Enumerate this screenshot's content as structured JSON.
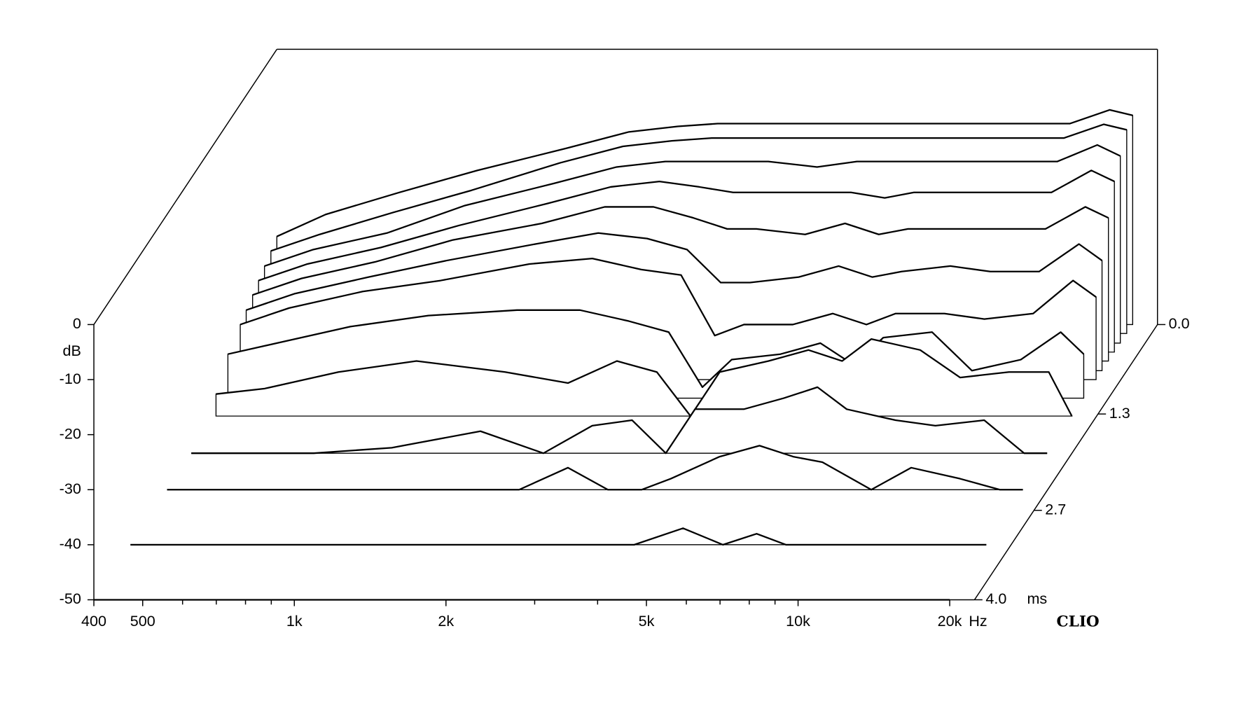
{
  "chart_data": {
    "type": "waterfall",
    "xlabel": "Hz",
    "ylabel": "dB",
    "zlabel": "ms",
    "watermark": "CLIO",
    "x": [
      400,
      500,
      700,
      1000,
      1500,
      2000,
      2500,
      3000,
      3500,
      4000,
      5000,
      6000,
      7000,
      8000,
      10000,
      12000,
      15000,
      18000,
      20000
    ],
    "xlim": [
      400,
      22400
    ],
    "xticks": [
      400,
      500,
      {
        "value": 1000,
        "label": "1k"
      },
      {
        "value": 2000,
        "label": "2k"
      },
      {
        "value": 5000,
        "label": "5k"
      },
      {
        "value": 10000,
        "label": "10k"
      },
      {
        "value": 20000,
        "label": "20k"
      }
    ],
    "xminor_ticks": [
      600,
      700,
      800,
      900,
      3000,
      4000,
      6000,
      7000,
      8000,
      9000
    ],
    "ylim": [
      -50,
      0
    ],
    "yticks": [
      0,
      -10,
      -20,
      -30,
      -40,
      -50
    ],
    "zlim": [
      0,
      4
    ],
    "zticks": [
      {
        "value": 0,
        "label": "0.0"
      },
      1.3,
      2.7,
      {
        "value": 4,
        "label": "4.0"
      }
    ],
    "slices": [
      {
        "time": 0,
        "values": [
          -34,
          -30,
          -26,
          -22,
          -18,
          -15,
          -14,
          -13.5,
          -13.5,
          -13.5,
          -13.5,
          -13.5,
          -13.5,
          -13.5,
          -13.5,
          -13.5,
          -13.5,
          -11,
          -12
        ]
      },
      {
        "time": 0.13,
        "values": [
          -35,
          -32,
          -28,
          -24,
          -19,
          -16,
          -15,
          -14.5,
          -14.5,
          -14.5,
          -14.5,
          -14.5,
          -14.5,
          -14.5,
          -14.5,
          -14.5,
          -14.5,
          -12,
          -13
        ]
      },
      {
        "time": 0.27,
        "values": [
          -36,
          -33,
          -30,
          -25,
          -21,
          -18,
          -17,
          -17,
          -17,
          -17,
          -18,
          -17,
          -17,
          -17,
          -17,
          -17,
          -17,
          -14,
          -16
        ]
      },
      {
        "time": 0.4,
        "values": [
          -37,
          -34,
          -31,
          -27,
          -23,
          -20,
          -19,
          -20,
          -21,
          -21,
          -21,
          -21,
          -22,
          -21,
          -21,
          -21,
          -21,
          -17,
          -19
        ]
      },
      {
        "time": 0.53,
        "values": [
          -38,
          -35,
          -32,
          -28,
          -25,
          -22,
          -22,
          -24,
          -26,
          -26,
          -27,
          -25,
          -27,
          -26,
          -26,
          -26,
          -26,
          -22,
          -24
        ]
      },
      {
        "time": 0.67,
        "values": [
          -39,
          -36,
          -33,
          -30,
          -27,
          -25,
          -26,
          -28,
          -34,
          -34,
          -33,
          -31,
          -33,
          -32,
          -31,
          -32,
          -32,
          -27,
          -30
        ]
      },
      {
        "time": 0.8,
        "values": [
          -40,
          -37,
          -34,
          -32,
          -29,
          -28,
          -30,
          -31,
          -42,
          -40,
          -40,
          -38,
          -40,
          -38,
          -38,
          -39,
          -38,
          -32,
          -35
        ]
      },
      {
        "time": 1.07,
        "values": [
          -42,
          -40,
          -37,
          -35,
          -34,
          -34,
          -36,
          -38,
          -48,
          -43,
          -42,
          -40,
          -44,
          -39,
          -38,
          -45,
          -43,
          -38,
          -42
        ]
      },
      {
        "time": 1.33,
        "values": [
          -46,
          -45,
          -42,
          -40,
          -42,
          -44,
          -40,
          -42,
          -50,
          -42,
          -40,
          -38,
          -40,
          -36,
          -38,
          -43,
          -42,
          -42,
          -50
        ]
      },
      {
        "time": 1.87,
        "values": [
          -50,
          -50,
          -50,
          -49,
          -46,
          -50,
          -45,
          -44,
          -50,
          -42,
          -42,
          -40,
          -38,
          -42,
          -44,
          -45,
          -44,
          -50,
          -50
        ]
      },
      {
        "time": 2.4,
        "values": [
          -50,
          -50,
          -50,
          -50,
          -50,
          -50,
          -46,
          -50,
          -50,
          -48,
          -44,
          -42,
          -44,
          -45,
          -50,
          -46,
          -48,
          -50,
          -50
        ]
      },
      {
        "time": 3.2,
        "values": [
          -50,
          -50,
          -50,
          -50,
          -50,
          -50,
          -50,
          -50,
          -50,
          -50,
          -47,
          -50,
          -48,
          -50,
          -50,
          -50,
          -50,
          -50,
          -50
        ]
      },
      {
        "time": 4,
        "values": [
          -50,
          -50,
          -50,
          -50,
          -50,
          -50,
          -50,
          -50,
          -50,
          -50,
          -50,
          -50,
          -50,
          -50,
          -50,
          -50,
          -50,
          -50,
          -50
        ]
      }
    ]
  }
}
